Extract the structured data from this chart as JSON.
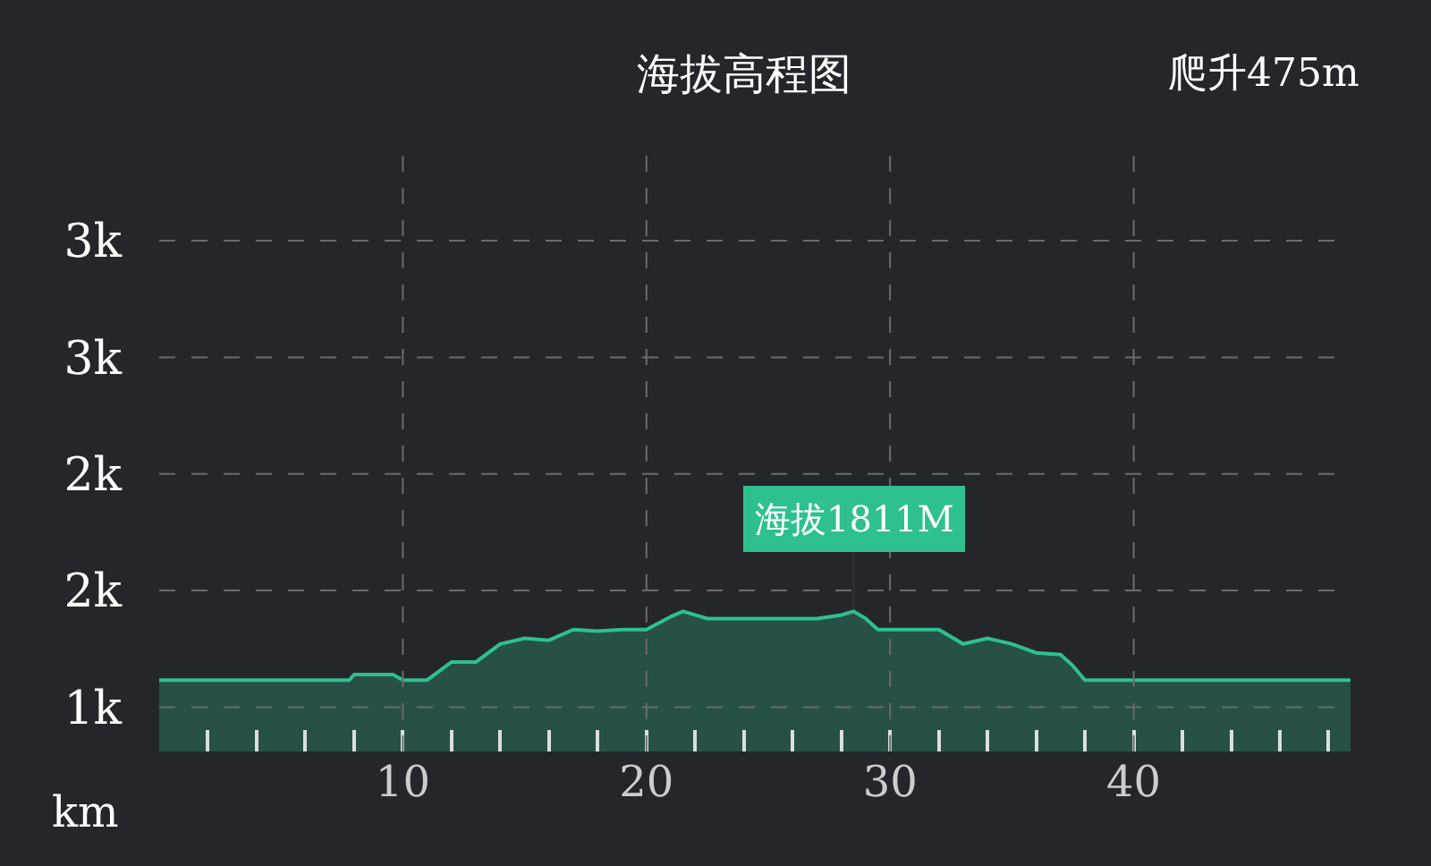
{
  "chart_data": {
    "type": "area",
    "title": "海拔高程图",
    "xlabel": "km",
    "annotations": [
      "爬升475m",
      {
        "text": "海拔1811M",
        "x": 28.5,
        "y": 1411
      }
    ],
    "x": [
      0,
      7.8,
      8,
      9.6,
      10,
      11,
      12,
      13,
      14,
      15,
      16,
      17,
      18,
      19,
      20,
      21,
      21.5,
      22.5,
      24,
      27,
      28,
      28.5,
      29,
      29.5,
      32,
      33,
      34,
      35,
      36,
      37,
      37.5,
      38,
      48.9
    ],
    "series": [
      {
        "color": "#2ec08f",
        "values": [
          1116,
          1116,
          1140,
          1140,
          1116,
          1116,
          1194,
          1194,
          1271,
          1295,
          1287,
          1333,
          1326,
          1333,
          1333,
          1388,
          1411,
          1380,
          1380,
          1380,
          1395,
          1411,
          1380,
          1333,
          1333,
          1271,
          1295,
          1271,
          1233,
          1225,
          1178,
          1116,
          1116
        ]
      }
    ],
    "xlim": [
      0,
      48.9
    ],
    "xticks": [
      {
        "value": 2,
        "label": null
      },
      {
        "value": 4,
        "label": null
      },
      {
        "value": 6,
        "label": null
      },
      {
        "value": 8,
        "label": null
      },
      10,
      {
        "value": 12,
        "label": null
      },
      {
        "value": 14,
        "label": null
      },
      {
        "value": 16,
        "label": null
      },
      {
        "value": 18,
        "label": null
      },
      20,
      {
        "value": 22,
        "label": null
      },
      {
        "value": 24,
        "label": null
      },
      {
        "value": 26,
        "label": null
      },
      {
        "value": 28,
        "label": null
      },
      30,
      {
        "value": 32,
        "label": null
      },
      {
        "value": 34,
        "label": null
      },
      {
        "value": 36,
        "label": null
      },
      {
        "value": 38,
        "label": null
      },
      40,
      {
        "value": 42,
        "label": null
      },
      {
        "value": 44,
        "label": null
      },
      {
        "value": 46,
        "label": null
      },
      {
        "value": 48,
        "label": null
      }
    ],
    "ylim": [
      810,
      3380
    ],
    "yticks": [
      {
        "value": 1000,
        "label": "1k"
      },
      {
        "value": 1500,
        "label": "2k"
      },
      {
        "value": 2000,
        "label": "2k"
      },
      {
        "value": 2500,
        "label": "3k"
      },
      {
        "value": 3000,
        "label": "3k"
      }
    ],
    "grid": true,
    "marker": "none",
    "line_style": "solid"
  }
}
